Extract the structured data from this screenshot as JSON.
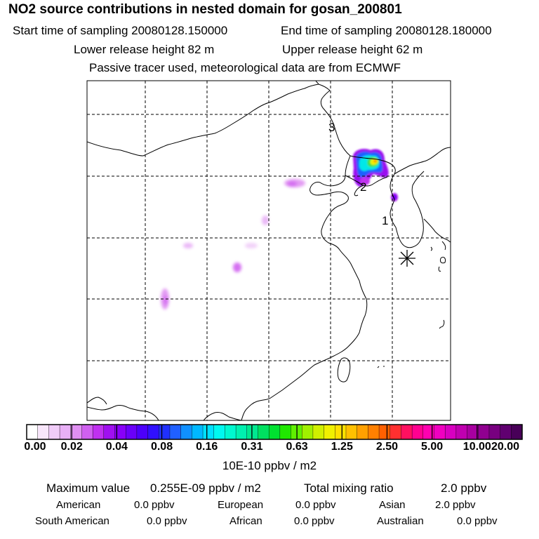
{
  "header": {
    "title": "NO2 source contributions in nested domain for gosan_200801",
    "start_label": "Start time of sampling 20080128.150000",
    "end_label": "End time of sampling 20080128.180000",
    "lower_label": "Lower release height   82 m",
    "upper_label": "Upper release height   62 m",
    "note": "Passive tracer used, meteorological data are from ECMWF"
  },
  "map": {
    "markers": [
      "1",
      "2",
      "3"
    ],
    "receptor_symbol": "star"
  },
  "colorbar": {
    "tick_labels": [
      "0.00",
      "0.02",
      "0.04",
      "0.08",
      "0.16",
      "0.31",
      "0.63",
      "1.25",
      "2.50",
      "5.00",
      "10.00",
      "20.00"
    ],
    "units": "10E-10 ppbv / m2",
    "colors": [
      "#ffffff",
      "#f8e6fb",
      "#f0ccf8",
      "#e8b0f6",
      "#e090f2",
      "#d060f0",
      "#c030f0",
      "#a010f0",
      "#8800f8",
      "#6a00fa",
      "#4c00fc",
      "#3010ff",
      "#2030ff",
      "#2060ff",
      "#1090ff",
      "#00b8ff",
      "#00e0ff",
      "#00f8f0",
      "#00f8d0",
      "#00f0b0",
      "#00e890",
      "#00e060",
      "#00e030",
      "#20e800",
      "#60f000",
      "#a0f000",
      "#d0f000",
      "#f0f000",
      "#ffe000",
      "#ffc000",
      "#ffa000",
      "#ff8000",
      "#ff6000",
      "#ff3030",
      "#ff1060",
      "#ff0090",
      "#ff00b0",
      "#f000c0",
      "#d800c0",
      "#c000b0",
      "#a800a0",
      "#900090",
      "#780080",
      "#600070",
      "#480058"
    ]
  },
  "stats": {
    "max_label": "Maximum value",
    "max_value": "0.255E-09 ppbv / m2",
    "total_label": "Total mixing ratio",
    "total_value": "2.0 ppbv",
    "regions": [
      {
        "name": "American",
        "value": "0.0 ppbv"
      },
      {
        "name": "European",
        "value": "0.0 ppbv"
      },
      {
        "name": "Asian",
        "value": "2.0 ppbv"
      },
      {
        "name": "South American",
        "value": "0.0 ppbv"
      },
      {
        "name": "African",
        "value": "0.0 ppbv"
      },
      {
        "name": "Australian",
        "value": "0.0 ppbv"
      }
    ]
  }
}
